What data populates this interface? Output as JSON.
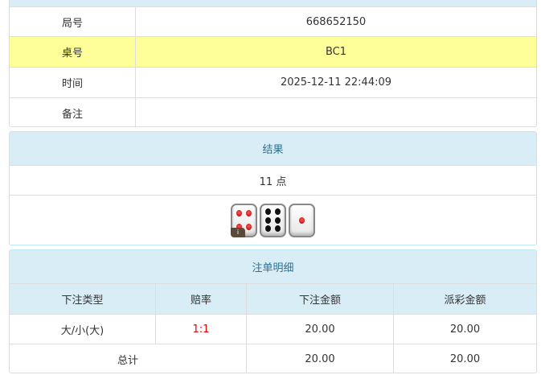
{
  "info": {
    "rows": [
      {
        "label": "局号",
        "value": "668652150"
      },
      {
        "label": "桌号",
        "value": "BC1"
      },
      {
        "label": "时间",
        "value": "2025-12-11 22:44:09"
      },
      {
        "label": "备注",
        "value": ""
      }
    ]
  },
  "result": {
    "title": "结果",
    "points": "11 点",
    "dice": [
      4,
      6,
      1
    ],
    "dice_badge": "i"
  },
  "bets": {
    "title": "注单明细",
    "headers": [
      "下注类型",
      "赔率",
      "下注金额",
      "派彩金额"
    ],
    "rows": [
      {
        "type": "大/小(大)",
        "odds": "1:1",
        "amount": "20.00",
        "payout": "20.00"
      }
    ],
    "total": {
      "label": "总计",
      "amount": "20.00",
      "payout": "20.00"
    }
  },
  "colors": {
    "header_bg": "#d9edf7",
    "highlight": "#ffff99",
    "odds": "#ee0000"
  }
}
